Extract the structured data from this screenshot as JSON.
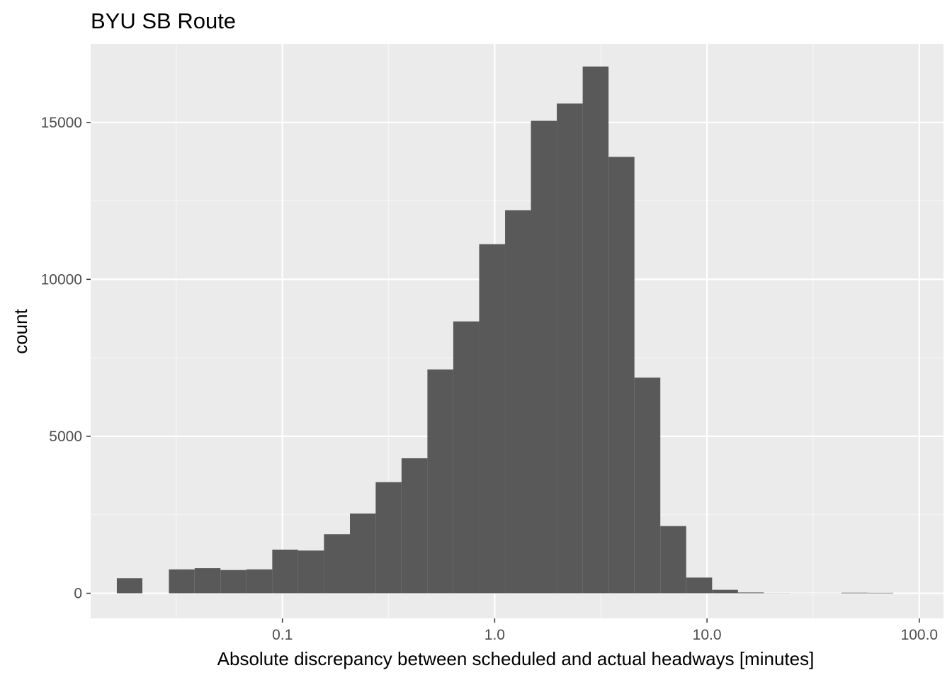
{
  "chart_data": {
    "type": "bar",
    "title": "BYU SB Route",
    "xlabel": "Absolute discrepancy between scheduled and actual headways [minutes]",
    "ylabel": "count",
    "x_scale": "log10",
    "xlim": [
      0.0125,
      130
    ],
    "ylim": [
      -800,
      17500
    ],
    "x_ticks": [
      {
        "value": 0.1,
        "label": "0.1"
      },
      {
        "value": 1,
        "label": "1.0"
      },
      {
        "value": 10,
        "label": "10.0"
      },
      {
        "value": 100,
        "label": "100.0"
      }
    ],
    "y_ticks": [
      {
        "value": 0,
        "label": "0"
      },
      {
        "value": 5000,
        "label": "5000"
      },
      {
        "value": 10000,
        "label": "10000"
      },
      {
        "value": 15000,
        "label": "15000"
      }
    ],
    "grid": true,
    "bar_color": "#595959",
    "panel_color": "#ebebeb",
    "bins": [
      {
        "x_from": 0.0166,
        "x_to": 0.0219,
        "count": 480
      },
      {
        "x_from": 0.0219,
        "x_to": 0.0292,
        "count": 0
      },
      {
        "x_from": 0.0292,
        "x_to": 0.0386,
        "count": 760
      },
      {
        "x_from": 0.0386,
        "x_to": 0.0511,
        "count": 800
      },
      {
        "x_from": 0.0511,
        "x_to": 0.0677,
        "count": 740
      },
      {
        "x_from": 0.0677,
        "x_to": 0.0896,
        "count": 760
      },
      {
        "x_from": 0.0896,
        "x_to": 0.1186,
        "count": 1390
      },
      {
        "x_from": 0.1186,
        "x_to": 0.157,
        "count": 1360
      },
      {
        "x_from": 0.157,
        "x_to": 0.208,
        "count": 1880
      },
      {
        "x_from": 0.208,
        "x_to": 0.275,
        "count": 2540
      },
      {
        "x_from": 0.275,
        "x_to": 0.364,
        "count": 3540
      },
      {
        "x_from": 0.364,
        "x_to": 0.482,
        "count": 4300
      },
      {
        "x_from": 0.482,
        "x_to": 0.638,
        "count": 7130
      },
      {
        "x_from": 0.638,
        "x_to": 0.845,
        "count": 8660
      },
      {
        "x_from": 0.845,
        "x_to": 1.119,
        "count": 11120
      },
      {
        "x_from": 1.119,
        "x_to": 1.481,
        "count": 12200
      },
      {
        "x_from": 1.481,
        "x_to": 1.961,
        "count": 15050
      },
      {
        "x_from": 1.961,
        "x_to": 2.597,
        "count": 15600
      },
      {
        "x_from": 2.597,
        "x_to": 3.438,
        "count": 16780
      },
      {
        "x_from": 3.438,
        "x_to": 4.552,
        "count": 13900
      },
      {
        "x_from": 4.552,
        "x_to": 6.027,
        "count": 6870
      },
      {
        "x_from": 6.027,
        "x_to": 7.98,
        "count": 2140
      },
      {
        "x_from": 7.98,
        "x_to": 10.57,
        "count": 500
      },
      {
        "x_from": 10.57,
        "x_to": 13.99,
        "count": 110
      },
      {
        "x_from": 13.99,
        "x_to": 18.52,
        "count": 25
      },
      {
        "x_from": 18.52,
        "x_to": 24.52,
        "count": 6
      },
      {
        "x_from": 24.52,
        "x_to": 32.47,
        "count": 3
      },
      {
        "x_from": 32.47,
        "x_to": 42.99,
        "count": 3
      },
      {
        "x_from": 42.99,
        "x_to": 56.93,
        "count": 18
      },
      {
        "x_from": 56.93,
        "x_to": 75.37,
        "count": 15
      }
    ]
  }
}
